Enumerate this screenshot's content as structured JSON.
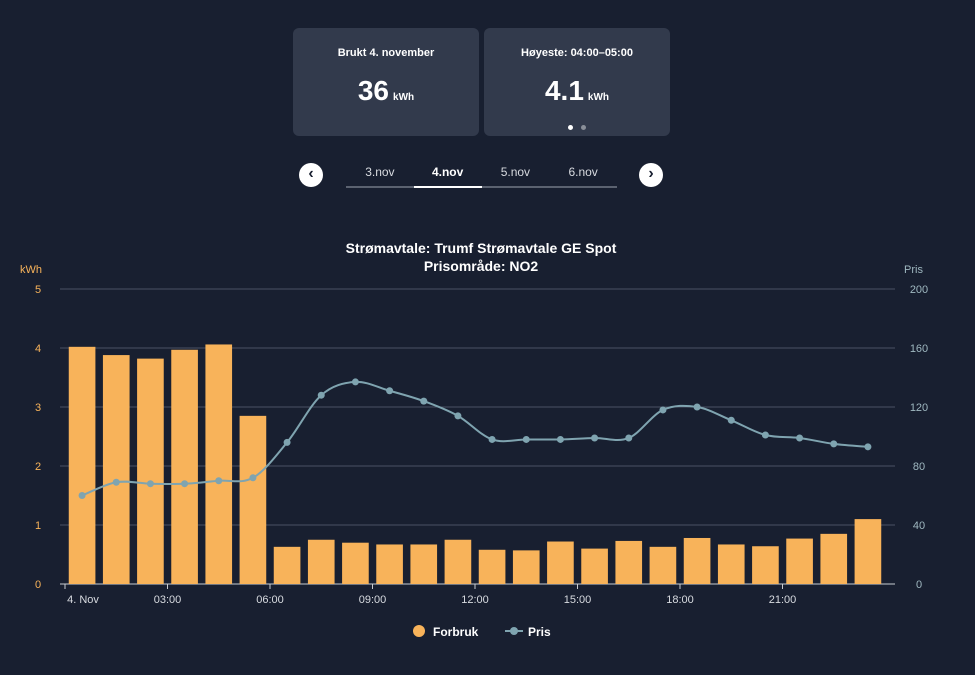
{
  "cards": [
    {
      "title": "Brukt 4. november",
      "value": "36",
      "unit": "kWh"
    },
    {
      "title": "Høyeste: 04:00–05:00",
      "value": "4.1",
      "unit": "kWh"
    }
  ],
  "pager": {
    "active": 0,
    "count": 2
  },
  "nav": {
    "prev_icon": "chevron-left-icon",
    "next_icon": "chevron-right-icon",
    "tabs": [
      {
        "label": "3.nov",
        "active": false
      },
      {
        "label": "4.nov",
        "active": true
      },
      {
        "label": "5.nov",
        "active": false
      },
      {
        "label": "6.nov",
        "active": false
      }
    ]
  },
  "colors": {
    "bar": "#f8b35a",
    "line": "#7fa4b0",
    "grid": "#4a5263",
    "axis_left": "#f8b35a",
    "axis_right": "#9fb8c0"
  },
  "chart_data": {
    "type": "bar",
    "title": "Strømavtale: Trumf Strømavtale GE Spot",
    "subtitle": "Prisområde: NO2",
    "ylabel_left": "kWh",
    "ylabel_right": "Pris",
    "ylim_left": [
      0,
      5
    ],
    "ylim_right": [
      0,
      200
    ],
    "yticks_left": [
      "0",
      "1",
      "2",
      "3",
      "4",
      "5"
    ],
    "yticks_right": [
      "0",
      "40",
      "80",
      "120",
      "160",
      "200"
    ],
    "x_tick_labels": [
      {
        "hour": 0,
        "label": "4. Nov"
      },
      {
        "hour": 3,
        "label": "03:00"
      },
      {
        "hour": 6,
        "label": "06:00"
      },
      {
        "hour": 9,
        "label": "09:00"
      },
      {
        "hour": 12,
        "label": "12:00"
      },
      {
        "hour": 15,
        "label": "15:00"
      },
      {
        "hour": 18,
        "label": "18:00"
      },
      {
        "hour": 21,
        "label": "21:00"
      }
    ],
    "hours": [
      0,
      1,
      2,
      3,
      4,
      5,
      6,
      7,
      8,
      9,
      10,
      11,
      12,
      13,
      14,
      15,
      16,
      17,
      18,
      19,
      20,
      21,
      22,
      23
    ],
    "series": [
      {
        "name": "Forbruk",
        "type": "bar",
        "axis": "left",
        "values": [
          4.02,
          3.88,
          3.82,
          3.97,
          4.06,
          2.85,
          0.63,
          0.75,
          0.7,
          0.67,
          0.67,
          0.75,
          0.58,
          0.57,
          0.72,
          0.6,
          0.73,
          0.63,
          0.78,
          0.67,
          0.64,
          0.77,
          0.85,
          1.1
        ]
      },
      {
        "name": "Pris",
        "type": "line",
        "axis": "right",
        "values": [
          60,
          69,
          68,
          68,
          70,
          72,
          96,
          128,
          137,
          131,
          124,
          114,
          98,
          98,
          98,
          99,
          99,
          118,
          120,
          111,
          101,
          99,
          95,
          93
        ]
      }
    ],
    "legend": [
      {
        "label": "Forbruk",
        "marker": "circle"
      },
      {
        "label": "Pris",
        "marker": "line-dot"
      }
    ],
    "legend_position": "bottom-center"
  }
}
